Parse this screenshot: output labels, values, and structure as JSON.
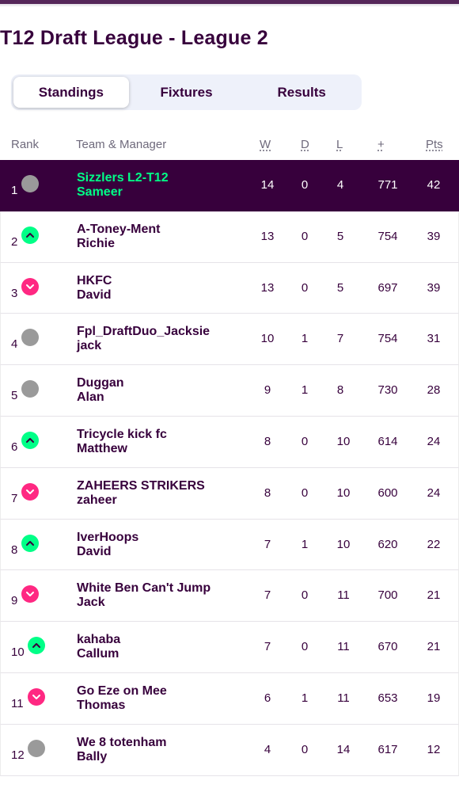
{
  "title": "T12 Draft League - League 2",
  "tabs": [
    {
      "label": "Standings",
      "active": true
    },
    {
      "label": "Fixtures",
      "active": false
    },
    {
      "label": "Results",
      "active": false
    }
  ],
  "columns": {
    "rank": "Rank",
    "team": "Team & Manager",
    "w": "W",
    "d": "D",
    "l": "L",
    "plus": "+",
    "pts": "Pts"
  },
  "colors": {
    "primary": "#37003c",
    "up": "#00ff87",
    "down": "#ff2882",
    "same": "#9a9a9a"
  },
  "rows": [
    {
      "rank": "1",
      "movement": "same",
      "team": "Sizzlers L2-T12",
      "manager": "Sameer",
      "w": "14",
      "d": "0",
      "l": "4",
      "plus": "771",
      "pts": "42"
    },
    {
      "rank": "2",
      "movement": "up",
      "team": "A-Toney-Ment",
      "manager": "Richie",
      "w": "13",
      "d": "0",
      "l": "5",
      "plus": "754",
      "pts": "39"
    },
    {
      "rank": "3",
      "movement": "down",
      "team": "HKFC",
      "manager": "David",
      "w": "13",
      "d": "0",
      "l": "5",
      "plus": "697",
      "pts": "39"
    },
    {
      "rank": "4",
      "movement": "same",
      "team": "Fpl_DraftDuo_Jacksie",
      "manager": "jack",
      "w": "10",
      "d": "1",
      "l": "7",
      "plus": "754",
      "pts": "31"
    },
    {
      "rank": "5",
      "movement": "same",
      "team": "Duggan",
      "manager": "Alan",
      "w": "9",
      "d": "1",
      "l": "8",
      "plus": "730",
      "pts": "28"
    },
    {
      "rank": "6",
      "movement": "up",
      "team": "Tricycle kick fc",
      "manager": "Matthew",
      "w": "8",
      "d": "0",
      "l": "10",
      "plus": "614",
      "pts": "24"
    },
    {
      "rank": "7",
      "movement": "down",
      "team": "ZAHEERS STRIKERS",
      "manager": "zaheer",
      "w": "8",
      "d": "0",
      "l": "10",
      "plus": "600",
      "pts": "24"
    },
    {
      "rank": "8",
      "movement": "up",
      "team": "IverHoops",
      "manager": "David",
      "w": "7",
      "d": "1",
      "l": "10",
      "plus": "620",
      "pts": "22"
    },
    {
      "rank": "9",
      "movement": "down",
      "team": "White Ben Can't Jump",
      "manager": "Jack",
      "w": "7",
      "d": "0",
      "l": "11",
      "plus": "700",
      "pts": "21"
    },
    {
      "rank": "10",
      "movement": "up",
      "team": "kahaba",
      "manager": "Callum",
      "w": "7",
      "d": "0",
      "l": "11",
      "plus": "670",
      "pts": "21"
    },
    {
      "rank": "11",
      "movement": "down",
      "team": "Go Eze on Mee",
      "manager": "Thomas",
      "w": "6",
      "d": "1",
      "l": "11",
      "plus": "653",
      "pts": "19"
    },
    {
      "rank": "12",
      "movement": "same",
      "team": "We 8 totenham",
      "manager": "Bally",
      "w": "4",
      "d": "0",
      "l": "14",
      "plus": "617",
      "pts": "12"
    }
  ]
}
